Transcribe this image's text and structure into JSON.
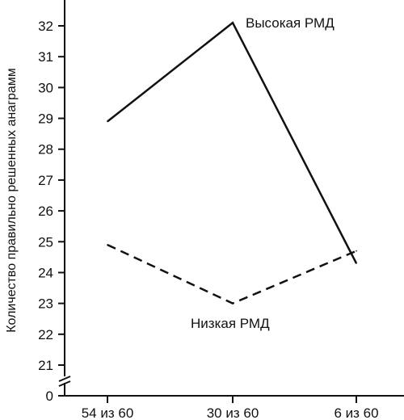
{
  "chart_data": {
    "type": "line",
    "title": "",
    "xlabel": "",
    "ylabel": "Количество правильно решенных анаграмм",
    "categories": [
      "54 из 60",
      "30 из 60",
      "6 из 60"
    ],
    "yticks": [
      "0",
      "21",
      "22",
      "23",
      "24",
      "25",
      "26",
      "27",
      "28",
      "29",
      "30",
      "31",
      "32"
    ],
    "ylim": [
      21,
      32
    ],
    "axis_break": true,
    "grid": false,
    "series": [
      {
        "name": "Высокая РМД",
        "values": [
          28.9,
          32.1,
          24.3
        ],
        "style": "solid",
        "color": "#111111"
      },
      {
        "name": "Низкая РМД",
        "values": [
          24.9,
          23.0,
          24.7
        ],
        "style": "dashed",
        "color": "#111111"
      }
    ]
  }
}
